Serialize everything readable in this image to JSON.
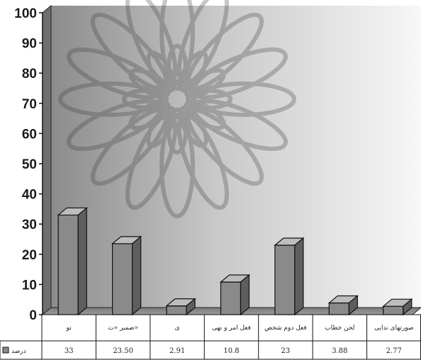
{
  "chart_data": {
    "type": "bar",
    "categories": [
      "تو",
      "ضمیر «ت»",
      "ی",
      "فعل امر و نهی",
      "فعل دوم شخص",
      "لحن خطاب",
      "صورتهای ندایی"
    ],
    "series": [
      {
        "name": "درصد",
        "values": [
          33,
          23.5,
          2.91,
          10.8,
          23,
          3.88,
          2.77
        ],
        "labels": [
          "33",
          "23.50",
          "2.91",
          "10.8",
          "23",
          "3.88",
          "2.77"
        ]
      }
    ],
    "ylim": [
      0,
      100
    ],
    "yticks": [
      "0",
      "10",
      "20",
      "30",
      "40",
      "50",
      "60",
      "70",
      "80",
      "90",
      "100"
    ],
    "grid": false,
    "legend_position": "bottom-left",
    "colors": {
      "bar_front": "#8a8a8a",
      "bar_top": "#bdbdbd",
      "bar_side": "#5e5e5e",
      "outline": "#111111"
    }
  }
}
